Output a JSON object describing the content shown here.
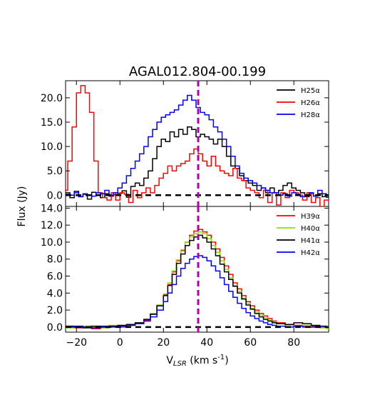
{
  "chart_data": {
    "type": "line",
    "title": "AGAL012.804-00.199",
    "xlabel_main": "V",
    "xlabel_sub": "LSR",
    "xlabel_units": " (km s",
    "xlabel_exp": "-1",
    "xlabel_close": ")",
    "ylabel": "Flux (Jy)",
    "xlim": [
      -25,
      96
    ],
    "x_ticks": [
      {
        "value": -20,
        "label": "−20"
      },
      {
        "value": 0,
        "label": "0"
      },
      {
        "value": 20,
        "label": "20"
      },
      {
        "value": 40,
        "label": "40"
      },
      {
        "value": 60,
        "label": "60"
      },
      {
        "value": 80,
        "label": "80"
      }
    ],
    "vline": {
      "x": 36,
      "color": "#b000b0",
      "style": "dashed"
    },
    "zero_line": {
      "y": 0,
      "color": "#000000",
      "style": "dashed"
    },
    "panels": [
      {
        "name": "top",
        "ylim": [
          -2.3,
          23.5
        ],
        "y_ticks": [
          {
            "value": 0,
            "label": "0.0"
          },
          {
            "value": 5,
            "label": "5.0"
          },
          {
            "value": 10,
            "label": "10.0"
          },
          {
            "value": 15,
            "label": "15.0"
          },
          {
            "value": 20,
            "label": "20.0"
          }
        ],
        "series": [
          {
            "name": "H25α",
            "color": "#000000",
            "x": [
              -25,
              -23,
              -21,
              -19,
              -17,
              -15,
              -13,
              -11,
              -9,
              -7,
              -5,
              -3,
              -1,
              1,
              3,
              5,
              7,
              9,
              11,
              13,
              15,
              17,
              19,
              21,
              23,
              25,
              27,
              29,
              31,
              33,
              35,
              37,
              39,
              41,
              43,
              45,
              47,
              49,
              51,
              53,
              55,
              57,
              59,
              61,
              63,
              65,
              67,
              69,
              71,
              73,
              75,
              77,
              79,
              81,
              83,
              85,
              87,
              89,
              91,
              93,
              95
            ],
            "y": [
              0.5,
              -0.5,
              0.8,
              -0.3,
              0.2,
              -0.8,
              0.6,
              0.1,
              -0.5,
              0.3,
              -0.2,
              0.1,
              0.4,
              0.9,
              -0.4,
              1.8,
              2.5,
              2.0,
              3.5,
              5.0,
              7.5,
              10.0,
              11.5,
              11.0,
              13.0,
              12.0,
              13.5,
              12.5,
              14.0,
              13.5,
              12.0,
              12.5,
              12.0,
              11.5,
              10.5,
              11.5,
              10.0,
              8.0,
              6.0,
              5.5,
              4.0,
              3.0,
              2.5,
              2.0,
              1.0,
              1.5,
              0.5,
              1.5,
              0.5,
              1.0,
              2.0,
              2.5,
              1.5,
              1.0,
              0.5,
              -0.3,
              0.4,
              -0.2,
              0.3,
              -0.3,
              -0.4
            ]
          },
          {
            "name": "H26α",
            "color": "#ff0000",
            "x": [
              -25,
              -24,
              -22,
              -20,
              -18,
              -16,
              -14,
              -12,
              -10,
              -8,
              -6,
              -4,
              -2,
              0,
              2,
              4,
              6,
              8,
              10,
              12,
              14,
              16,
              18,
              20,
              22,
              24,
              26,
              28,
              30,
              32,
              34,
              36,
              38,
              40,
              42,
              44,
              46,
              48,
              50,
              52,
              54,
              56,
              58,
              60,
              62,
              64,
              66,
              68,
              70,
              72,
              74,
              76,
              78,
              80,
              82,
              84,
              86,
              88,
              90,
              92,
              94
            ],
            "y": [
              1.0,
              7.0,
              14.0,
              21.0,
              22.5,
              21.0,
              17.0,
              7.0,
              0.5,
              -0.5,
              -1.0,
              0.5,
              -1.0,
              0.5,
              0.2,
              -1.5,
              1.0,
              -0.5,
              0.5,
              1.5,
              0.5,
              2.0,
              3.5,
              4.5,
              6.0,
              5.0,
              6.0,
              6.5,
              7.0,
              8.5,
              9.5,
              8.5,
              7.0,
              6.0,
              8.0,
              6.0,
              5.0,
              4.5,
              4.0,
              5.5,
              3.5,
              3.0,
              1.5,
              1.0,
              0.5,
              -0.5,
              1.0,
              -1.5,
              0.5,
              -2.0,
              0.5,
              -0.5,
              1.0,
              0.5,
              0.0,
              -1.0,
              0.5,
              -1.5,
              -0.5,
              -2.5,
              -1.0
            ]
          },
          {
            "name": "H28α",
            "color": "#0000ff",
            "x": [
              -25,
              -23,
              -21,
              -19,
              -17,
              -15,
              -13,
              -11,
              -9,
              -7,
              -5,
              -3,
              -1,
              1,
              3,
              5,
              7,
              9,
              11,
              13,
              15,
              17,
              19,
              21,
              23,
              25,
              27,
              29,
              31,
              33,
              35,
              37,
              39,
              41,
              43,
              45,
              47,
              49,
              51,
              53,
              55,
              57,
              59,
              61,
              63,
              65,
              67,
              69,
              71,
              73,
              75,
              77,
              79,
              81,
              83,
              85,
              87,
              89,
              91,
              93,
              95
            ],
            "y": [
              0.2,
              0.0,
              0.5,
              -0.3,
              0.3,
              0.0,
              -0.2,
              0.5,
              0.3,
              1.0,
              0.0,
              0.5,
              1.5,
              2.5,
              4.0,
              5.5,
              7.0,
              8.5,
              10.0,
              12.0,
              13.5,
              15.0,
              16.0,
              16.5,
              17.0,
              17.5,
              18.5,
              19.5,
              20.5,
              19.5,
              18.0,
              17.0,
              16.5,
              15.5,
              14.0,
              13.0,
              11.5,
              10.0,
              8.0,
              6.0,
              4.5,
              3.5,
              3.0,
              2.5,
              2.0,
              1.5,
              1.0,
              0.5,
              0.5,
              0.0,
              0.3,
              -0.2,
              0.5,
              0.2,
              -0.3,
              0.0,
              0.5,
              -0.2,
              1.0,
              0.3,
              0.0
            ]
          }
        ]
      },
      {
        "name": "bottom",
        "ylim": [
          -0.6,
          14.2
        ],
        "y_ticks": [
          {
            "value": 0,
            "label": "0.0"
          },
          {
            "value": 2,
            "label": "2.0"
          },
          {
            "value": 4,
            "label": "4.0"
          },
          {
            "value": 6,
            "label": "6.0"
          },
          {
            "value": 8,
            "label": "8.0"
          },
          {
            "value": 10,
            "label": "10.0"
          },
          {
            "value": 12,
            "label": "12.0"
          },
          {
            "value": 14,
            "label": "14.0"
          }
        ],
        "series": [
          {
            "name": "H39α",
            "color": "#ff0000",
            "x": [
              -25,
              -21,
              -17,
              -13,
              -9,
              -5,
              -1,
              3,
              7,
              11,
              14,
              17,
              20,
              22,
              24,
              26,
              28,
              30,
              32,
              34,
              36,
              38,
              40,
              42,
              44,
              46,
              48,
              50,
              52,
              54,
              56,
              58,
              60,
              62,
              64,
              66,
              68,
              70,
              72,
              76,
              80,
              84,
              88,
              92,
              95
            ],
            "y": [
              0.0,
              -0.1,
              0.1,
              -0.2,
              -0.1,
              0.1,
              0.0,
              0.2,
              0.4,
              0.8,
              1.5,
              2.5,
              3.8,
              5.0,
              6.5,
              7.8,
              9.0,
              10.0,
              10.8,
              11.3,
              11.5,
              11.2,
              10.8,
              10.0,
              9.2,
              8.2,
              7.2,
              6.2,
              5.2,
              4.5,
              3.7,
              3.0,
              2.5,
              2.0,
              1.6,
              1.3,
              1.0,
              0.7,
              0.5,
              0.3,
              0.2,
              0.1,
              0.1,
              0.0,
              0.0
            ]
          },
          {
            "name": "H40α",
            "color": "#88e000",
            "x": [
              -25,
              -21,
              -17,
              -13,
              -9,
              -5,
              -1,
              3,
              7,
              11,
              14,
              17,
              20,
              22,
              24,
              26,
              28,
              30,
              32,
              34,
              36,
              38,
              40,
              42,
              44,
              46,
              48,
              50,
              52,
              54,
              56,
              58,
              60,
              62,
              64,
              66,
              68,
              70,
              72,
              76,
              80,
              84,
              88,
              92,
              95
            ],
            "y": [
              -0.1,
              0.0,
              0.1,
              0.0,
              -0.1,
              0.2,
              0.1,
              0.3,
              0.5,
              0.9,
              1.6,
              2.6,
              3.9,
              5.2,
              6.6,
              7.9,
              9.1,
              10.0,
              10.6,
              11.0,
              11.2,
              11.0,
              10.4,
              9.6,
              8.8,
              7.8,
              6.8,
              5.8,
              4.9,
              4.2,
              3.4,
              2.8,
              2.2,
              1.8,
              1.4,
              1.1,
              0.8,
              0.6,
              0.4,
              0.2,
              0.1,
              0.2,
              0.0,
              -0.1,
              -0.2
            ]
          },
          {
            "name": "H41α",
            "color": "#000000",
            "x": [
              -25,
              -21,
              -17,
              -13,
              -9,
              -5,
              -1,
              3,
              7,
              11,
              14,
              17,
              20,
              22,
              24,
              26,
              28,
              30,
              32,
              34,
              36,
              38,
              40,
              42,
              44,
              46,
              48,
              50,
              52,
              54,
              56,
              58,
              60,
              62,
              64,
              66,
              68,
              70,
              72,
              76,
              80,
              84,
              88,
              92,
              95
            ],
            "y": [
              0.1,
              0.0,
              -0.1,
              0.1,
              0.0,
              0.1,
              0.2,
              0.3,
              0.5,
              0.9,
              1.5,
              2.5,
              3.7,
              4.9,
              6.2,
              7.5,
              8.6,
              9.6,
              10.2,
              10.6,
              10.8,
              10.5,
              10.0,
              9.2,
              8.4,
              7.4,
              6.5,
              5.6,
              4.8,
              4.0,
              3.3,
              2.6,
              2.1,
              1.6,
              1.2,
              0.9,
              0.7,
              0.5,
              0.4,
              0.3,
              0.5,
              0.4,
              0.2,
              0.1,
              0.0
            ]
          },
          {
            "name": "H42α",
            "color": "#0000ff",
            "x": [
              -25,
              -21,
              -17,
              -13,
              -9,
              -5,
              -1,
              3,
              7,
              11,
              14,
              17,
              20,
              22,
              24,
              26,
              28,
              30,
              32,
              34,
              36,
              38,
              40,
              42,
              44,
              46,
              48,
              50,
              52,
              54,
              56,
              58,
              60,
              62,
              64,
              66,
              68,
              70,
              72,
              76,
              80,
              84,
              88,
              92,
              95
            ],
            "y": [
              0.0,
              0.1,
              0.0,
              -0.1,
              0.1,
              0.0,
              0.1,
              0.2,
              0.4,
              0.7,
              1.2,
              2.0,
              3.0,
              4.0,
              5.0,
              6.0,
              6.9,
              7.5,
              8.0,
              8.3,
              8.4,
              8.2,
              7.8,
              7.2,
              6.6,
              5.8,
              5.0,
              4.2,
              3.5,
              2.8,
              2.2,
              1.7,
              1.3,
              1.0,
              0.7,
              0.5,
              0.3,
              0.2,
              0.1,
              0.0,
              0.1,
              0.0,
              0.0,
              0.1,
              0.0
            ]
          }
        ]
      }
    ]
  }
}
